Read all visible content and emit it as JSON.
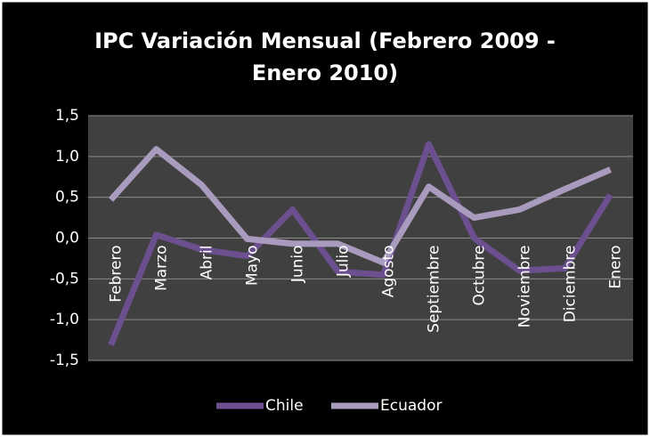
{
  "chart_data": {
    "type": "line",
    "title": "IPC Variación Mensual (Febrero 2009 - Enero 2010)",
    "categories": [
      "Febrero",
      "Marzo",
      "Abril",
      "Mayo",
      "Junio",
      "Julio",
      "Agosto",
      "Septiembre",
      "Octubre",
      "Noviembre",
      "Diciembre",
      "Enero"
    ],
    "series": [
      {
        "name": "Chile",
        "color": "#6b4f8e",
        "values": [
          -1.31,
          0.04,
          -0.14,
          -0.22,
          0.35,
          -0.41,
          -0.45,
          1.15,
          0.0,
          -0.4,
          -0.37,
          0.53
        ]
      },
      {
        "name": "Ecuador",
        "color": "#a99bbd",
        "values": [
          0.47,
          1.09,
          0.65,
          -0.01,
          -0.07,
          -0.07,
          -0.3,
          0.63,
          0.25,
          0.35,
          0.6,
          0.84
        ]
      }
    ],
    "ylim": [
      -1.5,
      1.5
    ],
    "yticks": [
      {
        "value": -1.5,
        "label": "-1,5"
      },
      {
        "value": -1.0,
        "label": "-1,0"
      },
      {
        "value": -0.5,
        "label": "-0,5"
      },
      {
        "value": 0,
        "label": "0,0"
      },
      {
        "value": 0.5,
        "label": "0,5"
      },
      {
        "value": 1.0,
        "label": "1,0"
      },
      {
        "value": 1.5,
        "label": "1,5"
      }
    ],
    "grid": true,
    "legend": "bottom"
  }
}
